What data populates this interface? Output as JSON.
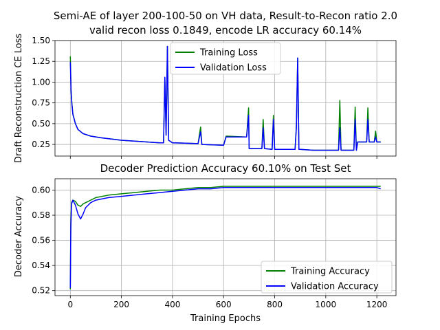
{
  "figure": {
    "title_line1": "Semi-AE of layer 200-100-50 on VH data, Result-to-Recon ratio 2.0",
    "title_line2": "valid recon loss 0.1849, encode LR accuracy 60.14%"
  },
  "chart_data": [
    {
      "type": "line",
      "title": "",
      "xlabel": "",
      "ylabel": "Draft Reconstruction CE Loss",
      "xlim": [
        -60,
        1275
      ],
      "ylim": [
        0.11,
        1.5
      ],
      "yticks": [
        0.25,
        0.5,
        0.75,
        1.0,
        1.25,
        1.5
      ],
      "ytick_labels": [
        "0.25",
        "0.50",
        "0.75",
        "1.00",
        "1.25",
        "1.50"
      ],
      "xticks": [
        0,
        200,
        400,
        600,
        800,
        1000,
        1200
      ],
      "grid": true,
      "legend_position": "top-center",
      "colors": {
        "Training Loss": "#008000",
        "Validation Loss": "#0000ff"
      },
      "series": [
        {
          "name": "Training Loss",
          "color": "#008000",
          "x": [
            0,
            3,
            6,
            10,
            20,
            30,
            50,
            80,
            120,
            200,
            300,
            350,
            365,
            370,
            375,
            380,
            385,
            400,
            500,
            510,
            515,
            600,
            610,
            690,
            698,
            700,
            705,
            750,
            755,
            760,
            790,
            795,
            800,
            880,
            885,
            890,
            895,
            900,
            950,
            1000,
            1050,
            1055,
            1060,
            1065,
            1100,
            1110,
            1115,
            1120,
            1125,
            1130,
            1160,
            1165,
            1170,
            1190,
            1195,
            1200,
            1215
          ],
          "y": [
            1.31,
            0.9,
            0.75,
            0.62,
            0.5,
            0.43,
            0.38,
            0.35,
            0.33,
            0.3,
            0.28,
            0.27,
            0.27,
            1.05,
            0.37,
            1.43,
            0.3,
            0.27,
            0.26,
            0.46,
            0.25,
            0.24,
            0.35,
            0.34,
            0.69,
            0.2,
            0.2,
            0.2,
            0.55,
            0.2,
            0.19,
            0.6,
            0.19,
            0.19,
            0.48,
            1.29,
            0.19,
            0.19,
            0.18,
            0.18,
            0.18,
            0.78,
            0.18,
            0.18,
            0.18,
            0.18,
            0.7,
            0.18,
            0.28,
            0.28,
            0.28,
            0.69,
            0.28,
            0.28,
            0.41,
            0.28,
            0.28
          ]
        },
        {
          "name": "Validation Loss",
          "color": "#0000ff",
          "x": [
            0,
            3,
            6,
            10,
            20,
            30,
            50,
            80,
            120,
            200,
            300,
            350,
            365,
            370,
            375,
            380,
            385,
            400,
            500,
            510,
            515,
            600,
            610,
            690,
            698,
            700,
            705,
            750,
            755,
            760,
            790,
            795,
            800,
            880,
            885,
            890,
            895,
            900,
            950,
            1000,
            1050,
            1055,
            1060,
            1065,
            1100,
            1110,
            1115,
            1120,
            1125,
            1130,
            1160,
            1165,
            1170,
            1190,
            1195,
            1200,
            1215
          ],
          "y": [
            1.24,
            0.88,
            0.74,
            0.61,
            0.5,
            0.43,
            0.38,
            0.35,
            0.33,
            0.3,
            0.28,
            0.27,
            0.27,
            1.06,
            0.36,
            1.43,
            0.3,
            0.27,
            0.26,
            0.4,
            0.25,
            0.24,
            0.34,
            0.34,
            0.6,
            0.2,
            0.2,
            0.2,
            0.45,
            0.2,
            0.19,
            0.55,
            0.19,
            0.19,
            0.45,
            1.29,
            0.19,
            0.19,
            0.18,
            0.18,
            0.18,
            0.45,
            0.18,
            0.18,
            0.18,
            0.18,
            0.55,
            0.18,
            0.28,
            0.28,
            0.28,
            0.55,
            0.28,
            0.28,
            0.34,
            0.28,
            0.28
          ]
        }
      ]
    },
    {
      "type": "line",
      "title": "Decoder Prediction Accuracy 60.10% on Test Set",
      "xlabel": "Training Epochs",
      "ylabel": "Decoder Accuracy",
      "xlim": [
        -60,
        1275
      ],
      "ylim": [
        0.516,
        0.609
      ],
      "yticks": [
        0.52,
        0.54,
        0.56,
        0.58,
        0.6
      ],
      "ytick_labels": [
        "0.52",
        "0.54",
        "0.56",
        "0.58",
        "0.60"
      ],
      "xticks": [
        0,
        200,
        400,
        600,
        800,
        1000,
        1200
      ],
      "xtick_labels": [
        "0",
        "200",
        "400",
        "600",
        "800",
        "1000",
        "1200"
      ],
      "grid": true,
      "legend_position": "bottom-right",
      "colors": {
        "Training Accuracy": "#008000",
        "Validation Accuracy": "#0000ff"
      },
      "series": [
        {
          "name": "Training Accuracy",
          "color": "#008000",
          "x": [
            0,
            2,
            5,
            10,
            20,
            30,
            40,
            50,
            60,
            80,
            100,
            150,
            200,
            250,
            300,
            350,
            400,
            450,
            500,
            550,
            600,
            700,
            800,
            900,
            1000,
            1050,
            1100,
            1150,
            1200,
            1215
          ],
          "y": [
            0.521,
            0.575,
            0.59,
            0.592,
            0.591,
            0.588,
            0.587,
            0.589,
            0.59,
            0.592,
            0.594,
            0.596,
            0.597,
            0.598,
            0.599,
            0.6,
            0.6,
            0.601,
            0.602,
            0.602,
            0.603,
            0.603,
            0.603,
            0.603,
            0.603,
            0.603,
            0.603,
            0.603,
            0.603,
            0.603
          ]
        },
        {
          "name": "Validation Accuracy",
          "color": "#0000ff",
          "x": [
            0,
            2,
            5,
            10,
            20,
            30,
            40,
            50,
            60,
            80,
            100,
            150,
            200,
            250,
            300,
            350,
            400,
            450,
            500,
            550,
            600,
            700,
            800,
            900,
            1000,
            1050,
            1100,
            1150,
            1200,
            1215
          ],
          "y": [
            0.522,
            0.57,
            0.589,
            0.592,
            0.588,
            0.581,
            0.577,
            0.581,
            0.586,
            0.59,
            0.592,
            0.594,
            0.595,
            0.596,
            0.597,
            0.598,
            0.599,
            0.6,
            0.601,
            0.601,
            0.602,
            0.602,
            0.602,
            0.602,
            0.602,
            0.602,
            0.602,
            0.602,
            0.602,
            0.601
          ]
        }
      ]
    }
  ]
}
